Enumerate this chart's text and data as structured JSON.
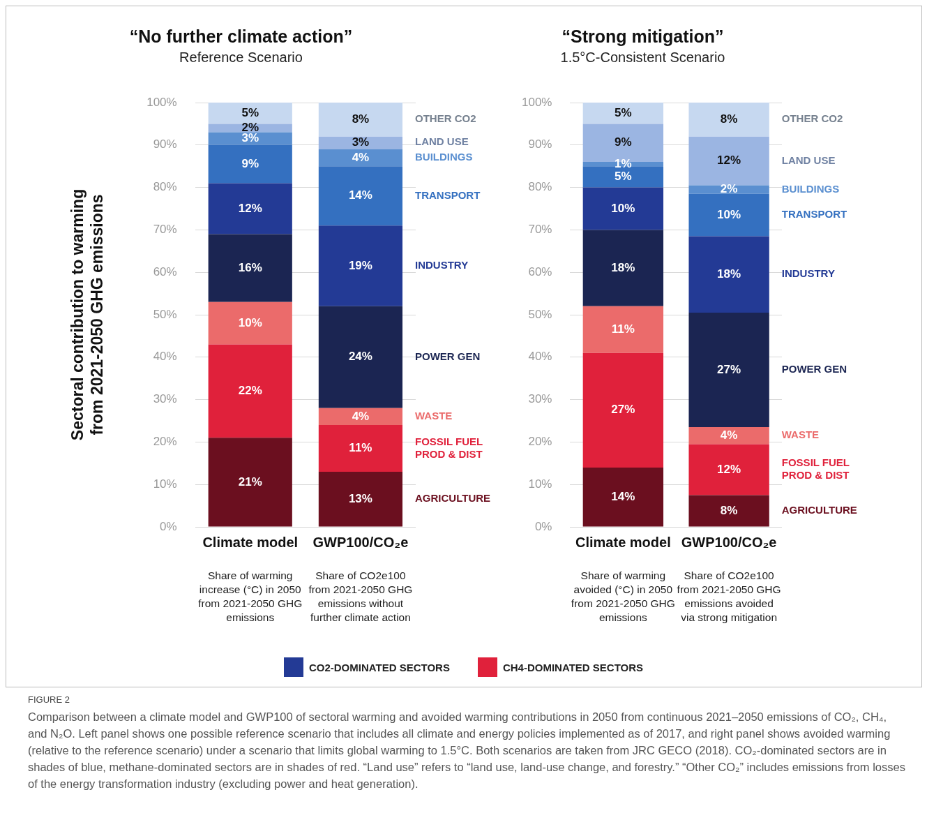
{
  "chart_data": [
    {
      "type": "bar",
      "title": "“No further climate action”",
      "subtitle": "Reference Scenario",
      "ylabel": "Sectoral contribution to warming from 2021-2050 GHG emissions",
      "categories": [
        "Climate model",
        "GWP100/CO₂e"
      ],
      "stacked": true,
      "ylim": [
        0,
        100
      ],
      "yticks": [
        {
          "value": 0,
          "label": "0%"
        },
        {
          "value": 10,
          "label": "10%"
        },
        {
          "value": 20,
          "label": "20%"
        },
        {
          "value": 30,
          "label": "30%"
        },
        {
          "value": 40,
          "label": "40%"
        },
        {
          "value": 50,
          "label": "50%"
        },
        {
          "value": 60,
          "label": "60%"
        },
        {
          "value": 70,
          "label": "70%"
        },
        {
          "value": 80,
          "label": "80%"
        },
        {
          "value": 90,
          "label": "90%"
        },
        {
          "value": 100,
          "label": "100%"
        }
      ],
      "grid": "y",
      "series": [
        {
          "name": "AGRICULTURE",
          "color": "#6b0f1f",
          "values": [
            21,
            13
          ],
          "value_labels": [
            "21%",
            "13%"
          ]
        },
        {
          "name": "FOSSIL FUEL PROD & DIST",
          "color": "#e0213b",
          "values": [
            22,
            11
          ],
          "value_labels": [
            "22%",
            "11%"
          ]
        },
        {
          "name": "WASTE",
          "color": "#eb6b6b",
          "values": [
            10,
            4
          ],
          "value_labels": [
            "10%",
            "4%"
          ]
        },
        {
          "name": "POWER GEN",
          "color": "#1b2552",
          "values": [
            16,
            24
          ],
          "value_labels": [
            "16%",
            "24%"
          ]
        },
        {
          "name": "INDUSTRY",
          "color": "#233a95",
          "values": [
            12,
            19
          ],
          "value_labels": [
            "12%",
            "19%"
          ]
        },
        {
          "name": "TRANSPORT",
          "color": "#3470c0",
          "values": [
            9,
            14
          ],
          "value_labels": [
            "9%",
            "14%"
          ]
        },
        {
          "name": "BUILDINGS",
          "color": "#5a8fd0",
          "values": [
            3,
            4
          ],
          "value_labels": [
            "3%",
            "4%"
          ]
        },
        {
          "name": "LAND USE",
          "color": "#9bb5e2",
          "values": [
            2,
            3
          ],
          "value_labels": [
            "2%",
            "3%"
          ]
        },
        {
          "name": "OTHER CO2",
          "color": "#c6d8f0",
          "values": [
            5,
            8
          ],
          "value_labels": [
            "5%",
            "8%"
          ]
        }
      ],
      "annotations": [
        "Share of warming increase (°C) in 2050 from 2021-2050 GHG emissions",
        "Share of CO2e100 from 2021-2050 GHG emissions without further climate action",
        "CO2-DOMINATED SECTORS",
        "CH4-DOMINATED SECTORS",
        "FIGURE 2",
        "Comparison between a climate model and GWP100 of sectoral warming and avoided warming contributions in 2050 from continuous 2021–2050 emissions of CO₂, CH₄, and N₂O. Left panel shows one possible reference scenario that includes all climate and energy policies implemented as of 2017, and right panel shows avoided warming (relative to the reference scenario) under a scenario that limits global warming to 1.5°C. Both scenarios are taken from JRC GECO (2018). CO₂-dominated sectors are in shades of blue, methane-dominated sectors are in shades of red. “Land use” refers to “land use, land-use change, and forestry.” “Other CO₂” includes emissions from losses of the energy transformation industry (excluding power and heat generation)."
      ]
    },
    {
      "type": "bar",
      "title": "“Strong mitigation”",
      "subtitle": "1.5°C-Consistent Scenario",
      "categories": [
        "Climate model",
        "GWP100/CO₂e"
      ],
      "stacked": true,
      "ylim": [
        0,
        100
      ],
      "yticks": [
        {
          "value": 0,
          "label": "0%"
        },
        {
          "value": 10,
          "label": "10%"
        },
        {
          "value": 20,
          "label": "20%"
        },
        {
          "value": 30,
          "label": "30%"
        },
        {
          "value": 40,
          "label": "40%"
        },
        {
          "value": 50,
          "label": "50%"
        },
        {
          "value": 60,
          "label": "60%"
        },
        {
          "value": 70,
          "label": "70%"
        },
        {
          "value": 80,
          "label": "80%"
        },
        {
          "value": 90,
          "label": "90%"
        },
        {
          "value": 100,
          "label": "100%"
        }
      ],
      "grid": "y",
      "series": [
        {
          "name": "AGRICULTURE",
          "color": "#6b0f1f",
          "values": [
            14,
            7.5
          ],
          "value_labels": [
            "14%",
            "8%"
          ]
        },
        {
          "name": "FOSSIL FUEL PROD & DIST",
          "color": "#e0213b",
          "values": [
            27,
            12
          ],
          "value_labels": [
            "27%",
            "12%"
          ]
        },
        {
          "name": "WASTE",
          "color": "#eb6b6b",
          "values": [
            11,
            4
          ],
          "value_labels": [
            "11%",
            "4%"
          ]
        },
        {
          "name": "POWER GEN",
          "color": "#1b2552",
          "values": [
            18,
            27
          ],
          "value_labels": [
            "18%",
            "27%"
          ]
        },
        {
          "name": "INDUSTRY",
          "color": "#233a95",
          "values": [
            10,
            18
          ],
          "value_labels": [
            "10%",
            "18%"
          ]
        },
        {
          "name": "TRANSPORT",
          "color": "#3470c0",
          "values": [
            5,
            10
          ],
          "value_labels": [
            "5%",
            "10%"
          ]
        },
        {
          "name": "BUILDINGS",
          "color": "#5a8fd0",
          "values": [
            1,
            2
          ],
          "value_labels": [
            "1%",
            "2%"
          ]
        },
        {
          "name": "LAND USE",
          "color": "#9bb5e2",
          "values": [
            9,
            11.5
          ],
          "value_labels": [
            "9%",
            "12%"
          ]
        },
        {
          "name": "OTHER CO2",
          "color": "#c6d8f0",
          "values": [
            5,
            8
          ],
          "value_labels": [
            "5%",
            "8%"
          ]
        }
      ],
      "annotations": [
        "Share of warming avoided (°C) in 2050 from 2021-2050 GHG emissions",
        "Share of CO2e100 from 2021-2050 GHG emissions avoided via strong mitigation"
      ]
    }
  ]
}
